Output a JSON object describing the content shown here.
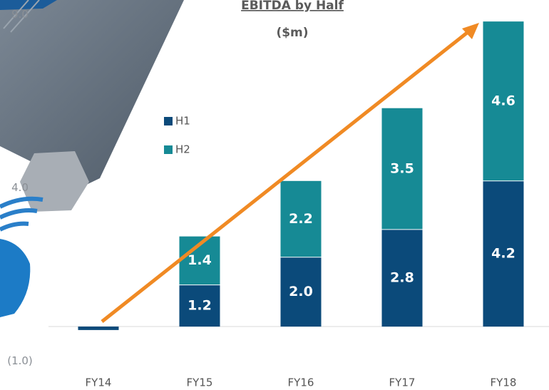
{
  "chart_data": {
    "type": "stacked-bar",
    "title": "EBITDA by Half",
    "subtitle": "($m)",
    "categories": [
      "FY14",
      "FY15",
      "FY16",
      "FY17",
      "FY18"
    ],
    "series": [
      {
        "name": "H1",
        "color": "#0b4a7a",
        "values": [
          -0.1,
          1.2,
          2.0,
          2.8,
          4.2
        ],
        "value_labels": [
          null,
          "1.2",
          "2.0",
          "2.8",
          "4.2"
        ]
      },
      {
        "name": "H2",
        "color": "#168a95",
        "values": [
          0,
          1.4,
          2.2,
          3.5,
          4.6
        ],
        "value_labels": [
          null,
          "1.4",
          "2.2",
          "3.5",
          "4.6"
        ]
      }
    ],
    "ylim": [
      -1.83,
      9.42
    ],
    "yticks": [
      {
        "value": 9,
        "label": "9.0"
      },
      {
        "value": 4,
        "label": "4.0"
      },
      {
        "value": -1,
        "label": "(1.0)"
      }
    ],
    "negative_tick_color": "#e02020"
  }
}
